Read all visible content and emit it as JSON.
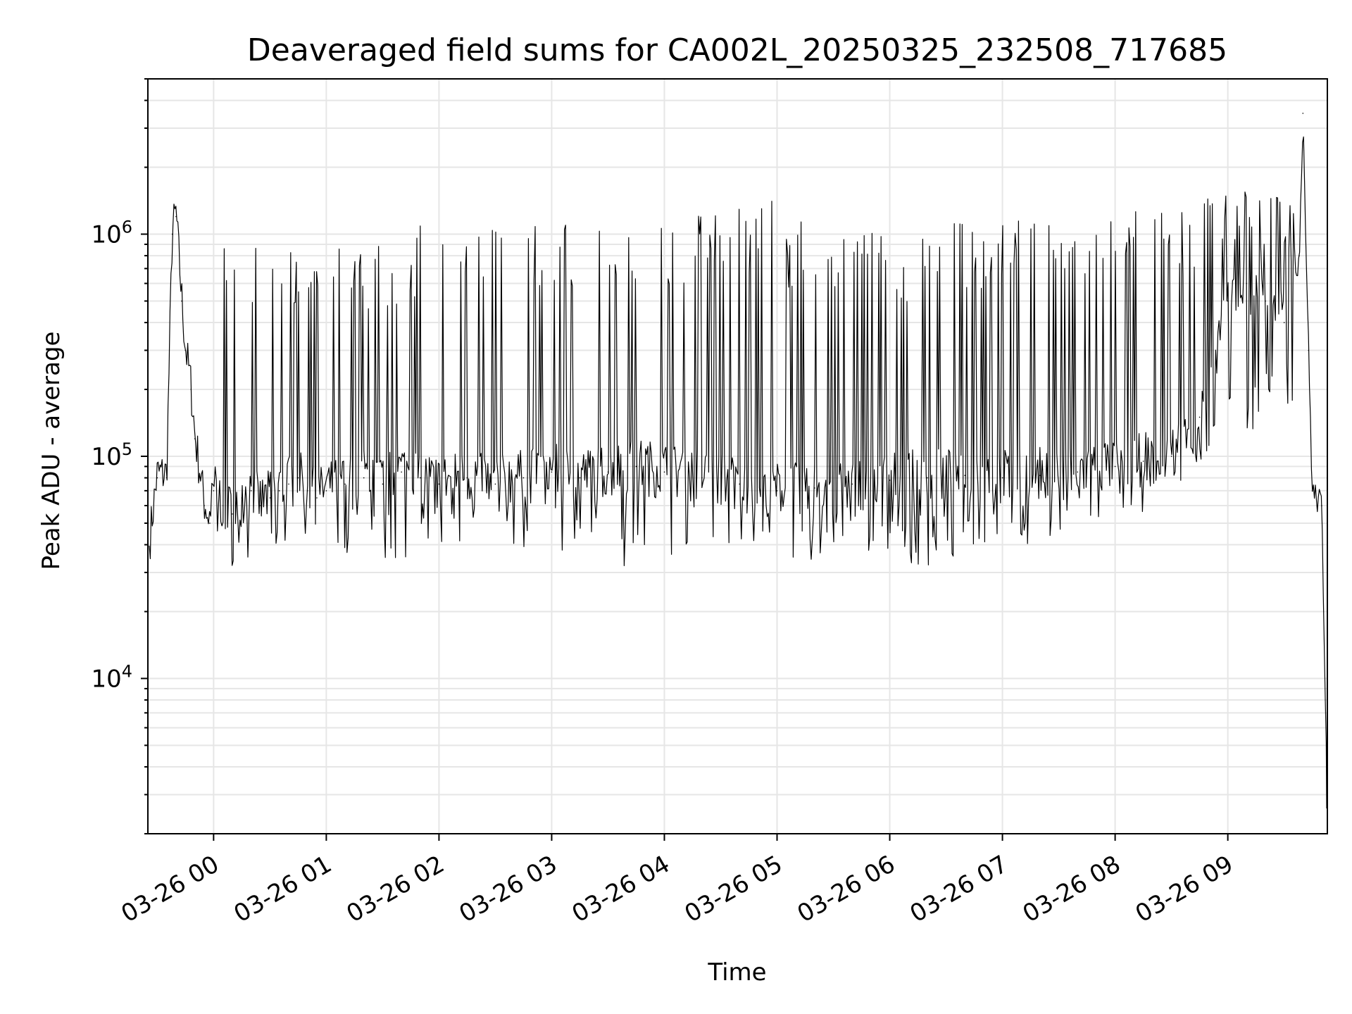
{
  "chart_data": {
    "type": "line",
    "title": "Deaveraged field sums for CA002L_20250325_232508_717685",
    "xlabel": "Time",
    "ylabel": "Peak ADU - average",
    "yscale": "log",
    "grid": true,
    "xlim": [
      "2025-03-25T23:25:00",
      "2025-03-26T09:53:00"
    ],
    "ylim": [
      2000,
      5000000
    ],
    "x_ticks": [
      {
        "value": "2025-03-26T00:00",
        "label": "03-26 00"
      },
      {
        "value": "2025-03-26T01:00",
        "label": "03-26 01"
      },
      {
        "value": "2025-03-26T02:00",
        "label": "03-26 02"
      },
      {
        "value": "2025-03-26T03:00",
        "label": "03-26 03"
      },
      {
        "value": "2025-03-26T04:00",
        "label": "03-26 04"
      },
      {
        "value": "2025-03-26T05:00",
        "label": "03-26 05"
      },
      {
        "value": "2025-03-26T06:00",
        "label": "03-26 06"
      },
      {
        "value": "2025-03-26T07:00",
        "label": "03-26 07"
      },
      {
        "value": "2025-03-26T08:00",
        "label": "03-26 08"
      },
      {
        "value": "2025-03-26T09:00",
        "label": "03-26 09"
      }
    ],
    "y_ticks": [
      {
        "value": 10000,
        "base": "10",
        "exp": "4"
      },
      {
        "value": 100000,
        "base": "10",
        "exp": "5"
      },
      {
        "value": 1000000,
        "base": "10",
        "exp": "6"
      }
    ],
    "series": [
      {
        "color": "#000000",
        "x": [
          "2025-03-25T23:25",
          "2025-03-25T23:30",
          "2025-03-25T23:35",
          "2025-03-25T23:38",
          "2025-03-25T23:40",
          "2025-03-25T23:43",
          "2025-03-25T23:45",
          "2025-03-25T23:48",
          "2025-03-25T23:50",
          "2025-03-25T23:53",
          "2025-03-25T23:55",
          "2025-03-25T23:58",
          "2025-03-26T00:00",
          "2025-03-26T00:05",
          "2025-03-26T00:10",
          "2025-03-26T00:15",
          "2025-03-26T00:20",
          "2025-03-26T00:25",
          "2025-03-26T00:30",
          "2025-03-26T00:35",
          "2025-03-26T00:40",
          "2025-03-26T00:45",
          "2025-03-26T00:50",
          "2025-03-26T00:55",
          "2025-03-26T01:00",
          "2025-03-26T01:10",
          "2025-03-26T01:20",
          "2025-03-26T01:30",
          "2025-03-26T01:40",
          "2025-03-26T01:50",
          "2025-03-26T02:00",
          "2025-03-26T02:15",
          "2025-03-26T02:30",
          "2025-03-26T02:45",
          "2025-03-26T03:00",
          "2025-03-26T03:15",
          "2025-03-26T03:30",
          "2025-03-26T03:45",
          "2025-03-26T04:00",
          "2025-03-26T04:20",
          "2025-03-26T04:40",
          "2025-03-26T05:00",
          "2025-03-26T05:20",
          "2025-03-26T05:40",
          "2025-03-26T06:00",
          "2025-03-26T06:20",
          "2025-03-26T06:40",
          "2025-03-26T07:00",
          "2025-03-26T07:20",
          "2025-03-26T07:40",
          "2025-03-26T08:00",
          "2025-03-26T08:15",
          "2025-03-26T08:30",
          "2025-03-26T08:45",
          "2025-03-26T09:00",
          "2025-03-26T09:10",
          "2025-03-26T09:20",
          "2025-03-26T09:30",
          "2025-03-26T09:38",
          "2025-03-26T09:40",
          "2025-03-26T09:43",
          "2025-03-26T09:45",
          "2025-03-26T09:50",
          "2025-03-26T09:53"
        ],
        "y": [
          35000,
          80000,
          80000,
          1000000,
          1200000,
          500000,
          300000,
          200000,
          120000,
          80000,
          60000,
          50000,
          70000,
          60000,
          55000,
          65000,
          70000,
          60000,
          65000,
          70000,
          75000,
          80000,
          70000,
          65000,
          70000,
          75000,
          80000,
          75000,
          85000,
          80000,
          75000,
          80000,
          75000,
          80000,
          85000,
          80000,
          85000,
          90000,
          85000,
          80000,
          75000,
          70000,
          72000,
          75000,
          78000,
          80000,
          82000,
          80000,
          82000,
          85000,
          90000,
          95000,
          100000,
          150000,
          500000,
          600000,
          500000,
          400000,
          800000,
          3500000,
          300000,
          70000,
          60000,
          3000
        ],
        "spike_highs": [
          750000,
          800000,
          820000,
          850000,
          780000,
          800000,
          950000,
          1000000,
          1050000,
          900000,
          950000,
          1000000,
          920000,
          980000,
          1050000,
          1100000,
          1200000,
          1250000,
          1000000,
          950000,
          920000,
          900000,
          950000,
          980000,
          1000000,
          1020000,
          980000,
          950000,
          1000000,
          1100000,
          1200000,
          1300000,
          1400000,
          1350000
        ],
        "spike_lows": [
          40000,
          38000,
          35000,
          32000,
          40000,
          42000,
          45000,
          50000,
          48000,
          45000,
          42000,
          40000,
          45000,
          50000,
          48000,
          45000,
          42000,
          40000,
          38000,
          40000,
          42000,
          45000,
          50000,
          55000,
          60000,
          70000,
          80000,
          100000,
          150000,
          200000
        ]
      }
    ]
  }
}
